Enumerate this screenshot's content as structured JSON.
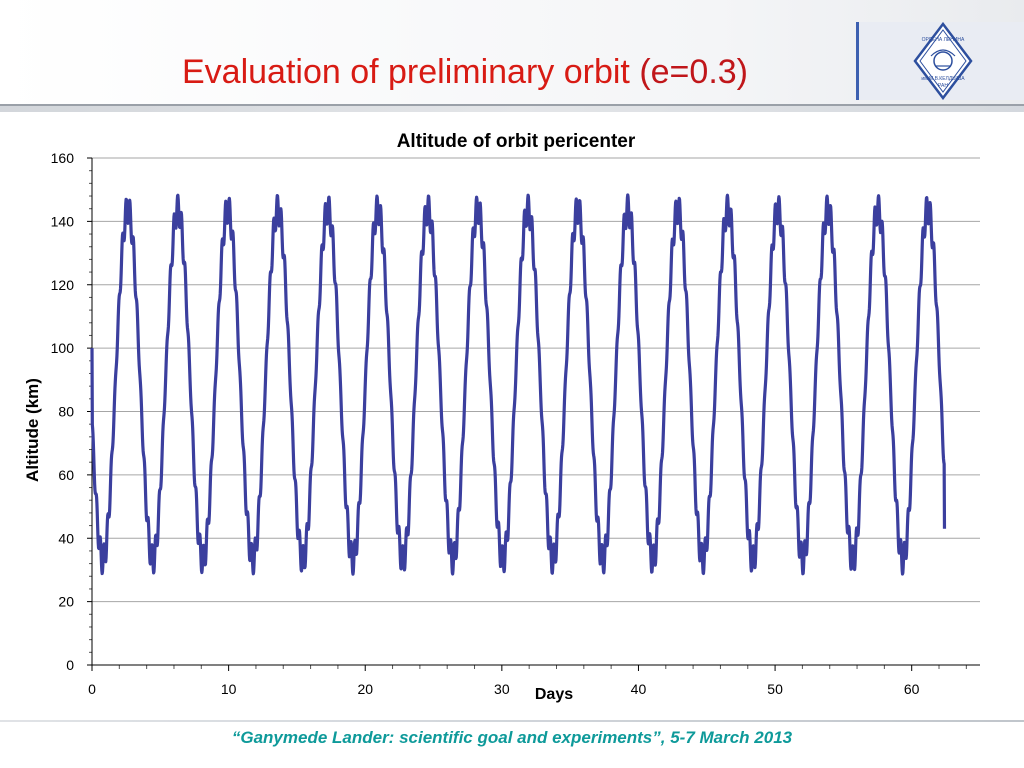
{
  "slide": {
    "title_main": "Evaluation of preliminary orbit",
    "title_sub": "(e=0.3)",
    "footer": "“Ganymede Lander: scientific goal and experiments”, 5-7 March 2013",
    "logo_top_text": "ОРДЕНА ЛЕНИНА",
    "logo_bottom_text": "им.М.В.КЕЛДЫША",
    "logo_ran_text": "РАН"
  },
  "colors": {
    "title_red": "#d81b14",
    "series_blue": "#3b3f9e",
    "footer_teal": "#0e9a9a",
    "grid": "#a6a6a6"
  },
  "chart_data": {
    "type": "line",
    "title": "Altitude of orbit pericenter",
    "xlabel": "Days",
    "ylabel": "Altitude (km)",
    "xlim": [
      0,
      65
    ],
    "ylim": [
      0,
      160
    ],
    "x_ticks": [
      "0",
      "10",
      "20",
      "30",
      "40",
      "50",
      "60"
    ],
    "y_ticks": [
      "0",
      "20",
      "40",
      "60",
      "80",
      "100",
      "120",
      "140",
      "160"
    ],
    "grid": "horizontal",
    "legend": "none",
    "series": [
      {
        "oscillation": {
          "start_x": 0,
          "end_x": 62.4,
          "start_y": 100,
          "end_y": 43,
          "period_days": 3.66,
          "max_y": 147,
          "min_y": 30,
          "ripple_km": 9
        }
      }
    ]
  }
}
